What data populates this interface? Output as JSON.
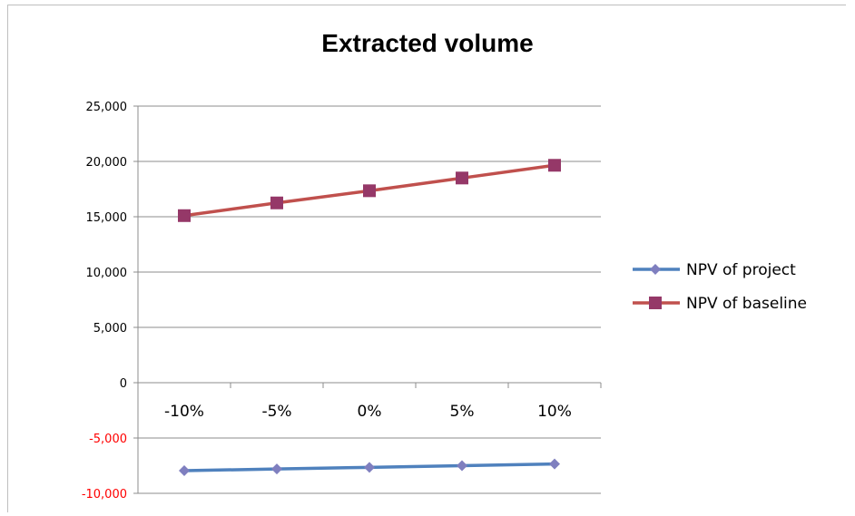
{
  "chart_data": {
    "type": "line",
    "title": "Extracted volume",
    "xlabel": "",
    "ylabel": "",
    "categories": [
      "-10%",
      "-5%",
      "0%",
      "5%",
      "10%"
    ],
    "ylim": [
      -10000,
      25000
    ],
    "yticks": [
      25000,
      20000,
      15000,
      10000,
      5000,
      0,
      -5000,
      -10000
    ],
    "ytick_labels": [
      "25,000",
      "20,000",
      "15,000",
      "10,000",
      "5,000",
      "0",
      "-5,000",
      "-10,000"
    ],
    "negative_tick_color": "#ff0000",
    "grid": true,
    "legend_position": "right",
    "series": [
      {
        "name": "NPV of project",
        "values": [
          -7950,
          -7800,
          -7650,
          -7500,
          -7350
        ],
        "color": "#4f81bd",
        "marker": "diamond",
        "marker_color": "#7f7fbf"
      },
      {
        "name": "NPV of baseline",
        "values": [
          15100,
          16250,
          17350,
          18500,
          19650
        ],
        "color": "#c0504d",
        "marker": "square",
        "marker_color": "#953868"
      }
    ]
  }
}
